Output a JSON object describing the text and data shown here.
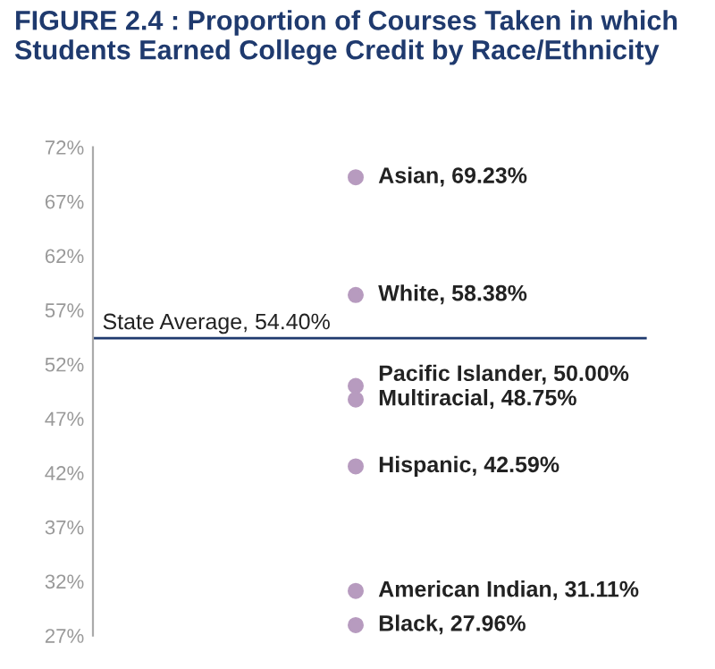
{
  "chart_data": {
    "type": "scatter",
    "title": "FIGURE 2.4 : Proportion of Courses Taken in which Students Earned College Credit by Race/Ethnicity",
    "categories": [
      null
    ],
    "marker": "circle",
    "grid": false,
    "legend": false,
    "tick_labels": "y",
    "ylim": [
      27,
      72
    ],
    "yticks": [
      {
        "value": 27,
        "label": "27%"
      },
      {
        "value": 32,
        "label": "32%"
      },
      {
        "value": 37,
        "label": "37%"
      },
      {
        "value": 42,
        "label": "42%"
      },
      {
        "value": 47,
        "label": "47%"
      },
      {
        "value": 52,
        "label": "52%"
      },
      {
        "value": 57,
        "label": "57%"
      },
      {
        "value": 62,
        "label": "62%"
      },
      {
        "value": 67,
        "label": "67%"
      },
      {
        "value": 72,
        "label": "72%"
      }
    ],
    "series": [
      {
        "color": "#b79bbf",
        "values": [
          69.23
        ],
        "value_labels": [
          "Asian, 69.23%"
        ]
      },
      {
        "color": "#b79bbf",
        "values": [
          58.38
        ],
        "value_labels": [
          "White, 58.38%"
        ]
      },
      {
        "color": "#b79bbf",
        "values": [
          50.0
        ],
        "value_labels": [
          "Pacific Islander, 50.00%"
        ]
      },
      {
        "color": "#b79bbf",
        "values": [
          48.75
        ],
        "value_labels": [
          "Multiracial, 48.75%"
        ]
      },
      {
        "color": "#b79bbf",
        "values": [
          42.59
        ],
        "value_labels": [
          "Hispanic, 42.59%"
        ]
      },
      {
        "color": "#b79bbf",
        "values": [
          31.11
        ],
        "value_labels": [
          "American Indian, 31.11%"
        ]
      },
      {
        "color": "#b79bbf",
        "values": [
          27.96
        ],
        "value_labels": [
          "Black, 27.96%"
        ]
      }
    ],
    "ref_lines": [
      {
        "axis": "y",
        "value": 54.4,
        "label": "State Average, 54.40%",
        "color": "#1f3a6e"
      }
    ]
  }
}
